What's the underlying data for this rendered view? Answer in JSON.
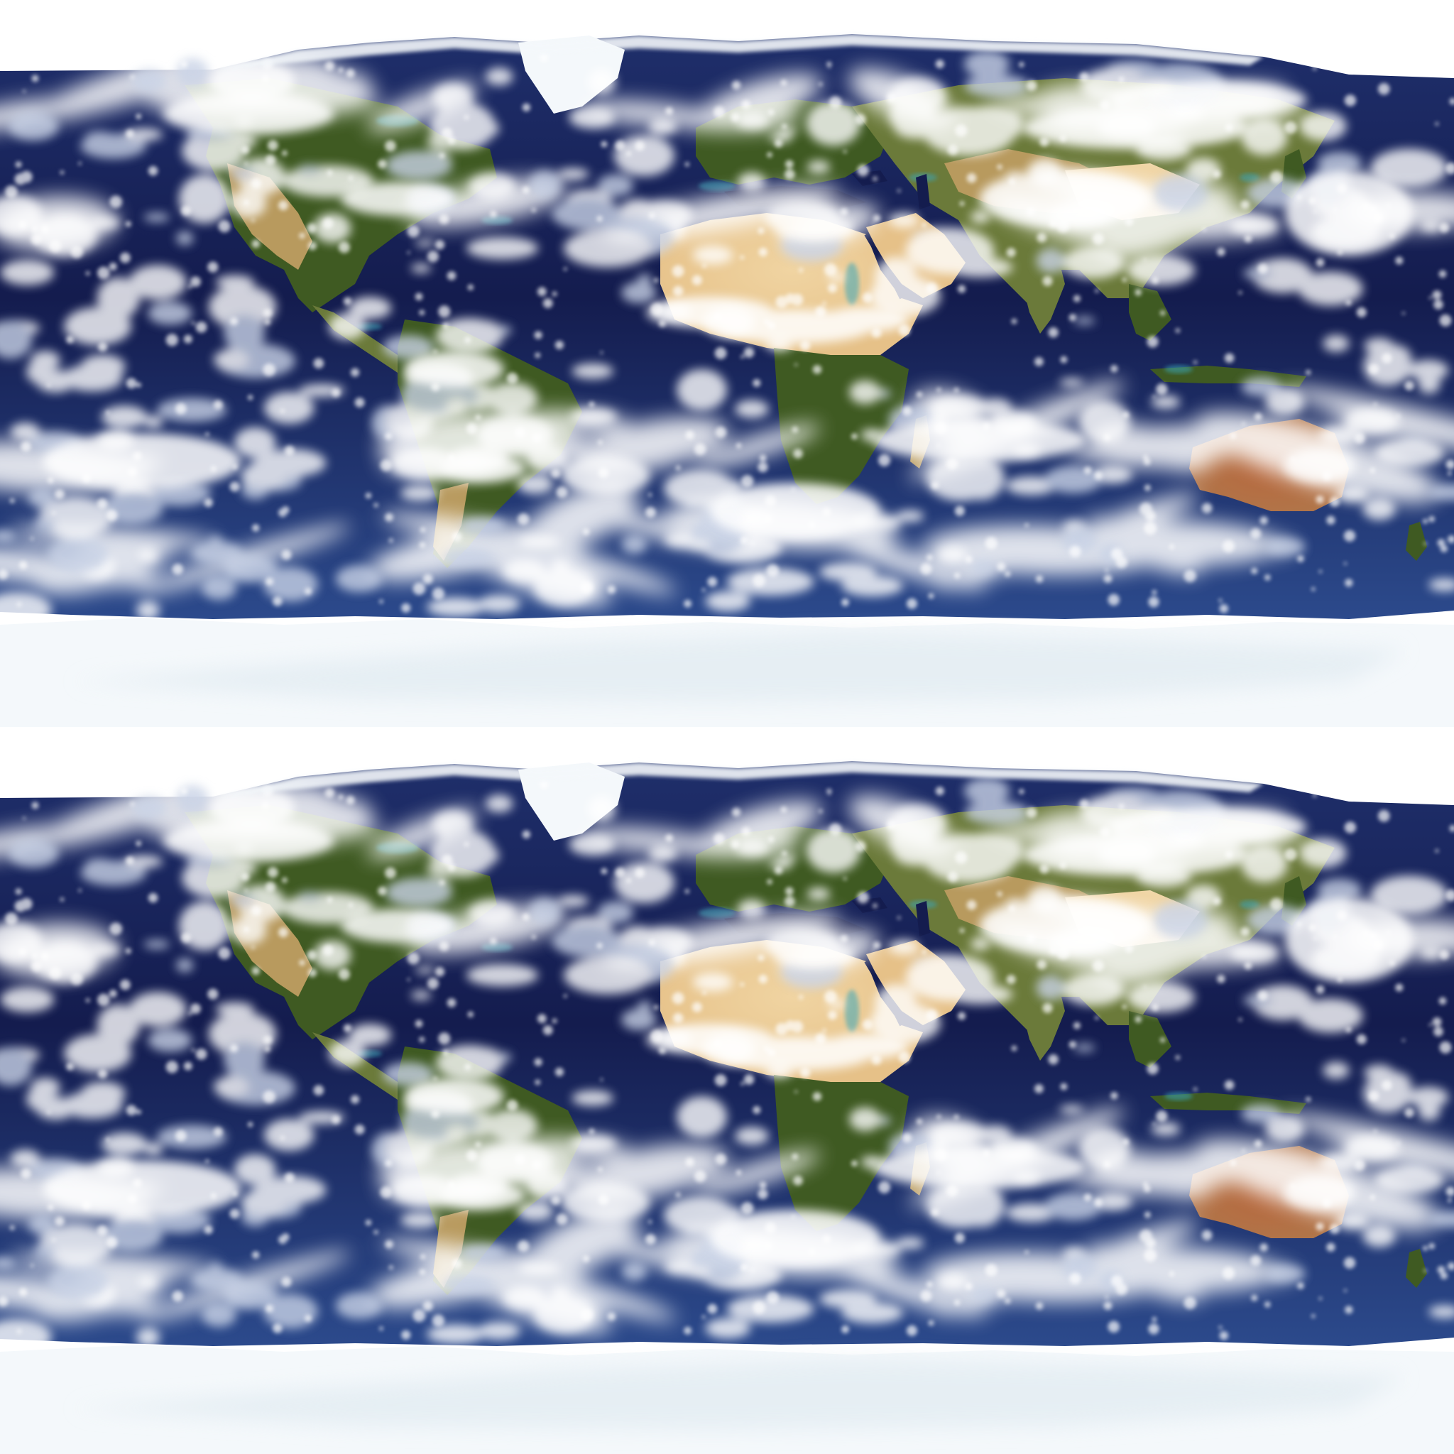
{
  "image": {
    "kind": "satellite-composite-world-map",
    "projection": "equirectangular",
    "repeated_tiles": 2
  },
  "colors": {
    "ocean_deep": "#141c4e",
    "ocean_mid": "#1f2f6b",
    "ocean_light": "#2c4a8c",
    "shallow_water": "#3aa6b8",
    "vegetation": "#3f5a22",
    "vegetation_light": "#6b7a3a",
    "dry_land": "#b89a5e",
    "desert": "#e6c188",
    "desert_light": "#f0d4a2",
    "australia_red": "#b0764a",
    "cloud": "#ffffff",
    "cloud_shade": "#c9d3e6",
    "ice": "#f4f8fb",
    "ice_shade": "#dde8ef"
  },
  "tiles": [
    {
      "name": "upper-world-map"
    },
    {
      "name": "lower-world-map"
    }
  ]
}
